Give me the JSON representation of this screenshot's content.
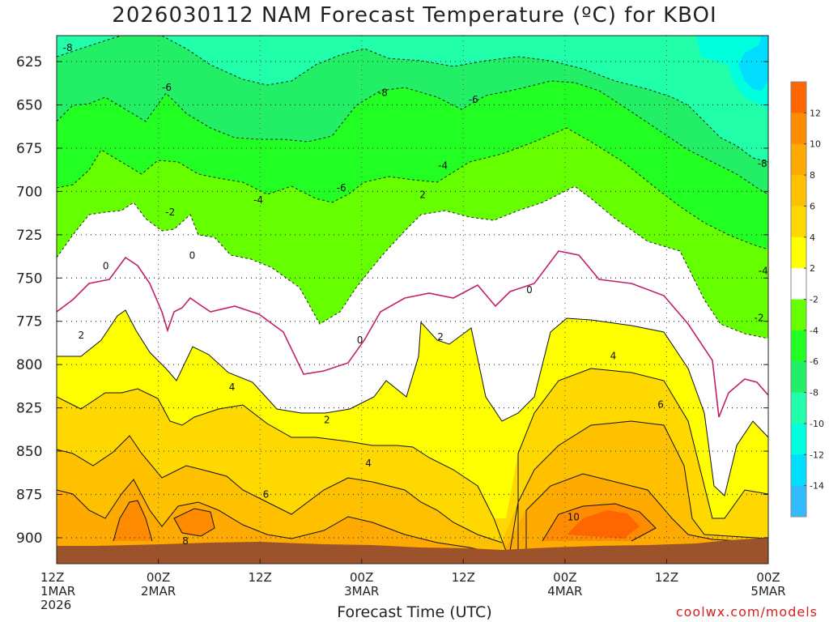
{
  "chart_data": {
    "type": "heatmap",
    "title": "2026030112 NAM Forecast Temperature (ºC) for KBOI",
    "xlabel": "Forecast Time (UTC)",
    "credit": "coolwx.com/models",
    "y_axis": {
      "ticks": [
        "625",
        "650",
        "675",
        "700",
        "725",
        "750",
        "775",
        "800",
        "825",
        "850",
        "875",
        "900"
      ],
      "range_hpa": [
        610,
        915
      ],
      "inverted": true,
      "grid": true
    },
    "x_axis": {
      "ticks": [
        {
          "hour": 0,
          "lines": [
            "12Z",
            "1MAR",
            "2026"
          ]
        },
        {
          "hour": 12,
          "lines": [
            "00Z",
            "2MAR"
          ]
        },
        {
          "hour": 24,
          "lines": [
            "12Z"
          ]
        },
        {
          "hour": 36,
          "lines": [
            "00Z",
            "3MAR"
          ]
        },
        {
          "hour": 48,
          "lines": [
            "12Z"
          ]
        },
        {
          "hour": 60,
          "lines": [
            "00Z",
            "4MAR"
          ]
        },
        {
          "hour": 72,
          "lines": [
            "12Z"
          ]
        },
        {
          "hour": 84,
          "lines": [
            "00Z",
            "5MAR"
          ]
        }
      ],
      "range_hours": [
        0,
        84
      ],
      "grid": true
    },
    "colorbar": {
      "labels": [
        "12",
        "10",
        "8",
        "6",
        "4",
        "2",
        "-2",
        "-4",
        "-6",
        "-8",
        "-10",
        "-12",
        "-14"
      ],
      "bands": [
        {
          "range": "12-14",
          "color": "#ff6600"
        },
        {
          "range": "10-12",
          "color": "#ff8c00"
        },
        {
          "range": "8-10",
          "color": "#ffaa00"
        },
        {
          "range": "6-8",
          "color": "#ffc000"
        },
        {
          "range": "4-6",
          "color": "#ffd800"
        },
        {
          "range": "2-4",
          "color": "#ffff00"
        },
        {
          "range": "-2-2",
          "color": "#ffffff"
        },
        {
          "range": "-4--2",
          "color": "#66ff00"
        },
        {
          "range": "-6--4",
          "color": "#22ff22"
        },
        {
          "range": "-8--6",
          "color": "#22ee66"
        },
        {
          "range": "-10--8",
          "color": "#22ffaa"
        },
        {
          "range": "-12--10",
          "color": "#00ffdd"
        },
        {
          "range": "-14--12",
          "color": "#00ddff"
        },
        {
          "range": "-16--14",
          "color": "#33bbff"
        }
      ]
    },
    "contour_labels": [
      {
        "text": "-8",
        "hour": 1.3,
        "p": 617
      },
      {
        "text": "-6",
        "hour": 13,
        "p": 640
      },
      {
        "text": "-8",
        "hour": 38.5,
        "p": 643
      },
      {
        "text": "-6",
        "hour": 49.2,
        "p": 647
      },
      {
        "text": "-4",
        "hour": 45.6,
        "p": 685
      },
      {
        "text": "-6",
        "hour": 33.6,
        "p": 698
      },
      {
        "text": "-4",
        "hour": 23.8,
        "p": 705
      },
      {
        "text": "-2",
        "hour": 13.4,
        "p": 712
      },
      {
        "text": "2",
        "hour": 43.2,
        "p": 702
      },
      {
        "text": "-8",
        "hour": 83.3,
        "p": 684
      },
      {
        "text": "-4",
        "hour": 83.4,
        "p": 746
      },
      {
        "text": "0",
        "hour": 5.8,
        "p": 743
      },
      {
        "text": "0",
        "hour": 16,
        "p": 737
      },
      {
        "text": "0",
        "hour": 55.8,
        "p": 757
      },
      {
        "text": "0",
        "hour": 35.8,
        "p": 786
      },
      {
        "text": "-2",
        "hour": 82.9,
        "p": 773
      },
      {
        "text": "2",
        "hour": 2.9,
        "p": 783
      },
      {
        "text": "2",
        "hour": 45.3,
        "p": 784
      },
      {
        "text": "4",
        "hour": 20.7,
        "p": 813
      },
      {
        "text": "2",
        "hour": 31.9,
        "p": 832
      },
      {
        "text": "4",
        "hour": 65.7,
        "p": 795
      },
      {
        "text": "6",
        "hour": 71.3,
        "p": 823
      },
      {
        "text": "4",
        "hour": 36.8,
        "p": 857
      },
      {
        "text": "6",
        "hour": 24.7,
        "p": 875
      },
      {
        "text": "10",
        "hour": 61,
        "p": 888
      },
      {
        "text": "8",
        "hour": 15.2,
        "p": 902
      }
    ]
  }
}
